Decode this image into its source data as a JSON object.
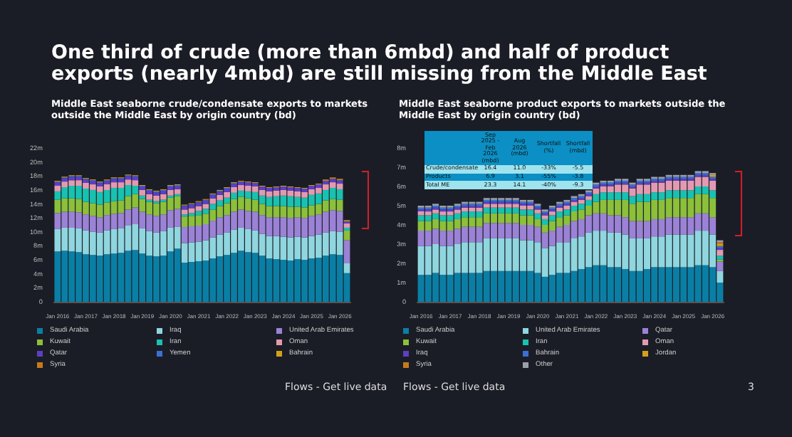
{
  "chart_data": [
    {
      "type": "bar",
      "title": "Middle East seaborne crude/condensate exports to markets outside the Middle East by origin country (bd)",
      "stacked": true,
      "legend": "bottom",
      "annotations": [
        "One third of crude (more than 6mbd) and half of product exports (nearly 4mbd) are still missing from the Middle East",
        "Flows - Get live data"
      ],
      "categories": [
        "Jan 2016",
        null,
        null,
        null,
        "Jan 2017",
        null,
        null,
        null,
        "Jan 2018",
        null,
        null,
        null,
        "Jan 2019",
        null,
        null,
        null,
        "Jan 2020",
        null,
        null,
        null,
        "Jan 2021",
        null,
        null,
        null,
        "Jan 2022",
        null,
        null,
        null,
        "Jan 2023",
        null,
        null,
        null,
        "Jan 2024",
        null,
        null,
        null,
        "Jan 2025",
        null,
        null,
        null,
        "Jan 2026",
        null
      ],
      "ylim": [
        0,
        22
      ],
      "yticks": [
        0,
        {
          "value": 2,
          "label": "2m"
        },
        {
          "value": 4,
          "label": "4m"
        },
        {
          "value": 6,
          "label": "6m"
        },
        {
          "value": 8,
          "label": "8m"
        },
        {
          "value": 10,
          "label": "10m"
        },
        {
          "value": 12,
          "label": "12m"
        },
        {
          "value": 14,
          "label": "14m"
        },
        {
          "value": 16,
          "label": "16m"
        },
        {
          "value": 18,
          "label": "18m"
        },
        {
          "value": 20,
          "label": "20m"
        },
        {
          "value": 22,
          "label": "22m"
        }
      ],
      "series": [
        {
          "name": "Saudi Arabia",
          "color": "#0a7fa5",
          "values": [
            7.2,
            7.3,
            7.2,
            7.1,
            6.8,
            6.7,
            6.6,
            6.8,
            6.9,
            7.0,
            7.3,
            7.4,
            6.9,
            6.6,
            6.5,
            6.6,
            7.2,
            7.6,
            5.6,
            5.7,
            5.8,
            5.9,
            6.2,
            6.5,
            6.7,
            7.0,
            7.3,
            7.1,
            7.0,
            6.6,
            6.2,
            6.1,
            6.0,
            5.9,
            6.1,
            6.0,
            6.2,
            6.3,
            6.6,
            6.8,
            6.7,
            4.1
          ]
        },
        {
          "name": "Iraq",
          "color": "#8fd6df",
          "values": [
            3.2,
            3.3,
            3.4,
            3.4,
            3.4,
            3.3,
            3.3,
            3.4,
            3.5,
            3.5,
            3.6,
            3.7,
            3.6,
            3.5,
            3.4,
            3.5,
            3.4,
            3.1,
            2.8,
            2.8,
            2.8,
            2.9,
            3.0,
            3.1,
            3.2,
            3.3,
            3.3,
            3.3,
            3.2,
            3.1,
            3.2,
            3.3,
            3.3,
            3.3,
            3.2,
            3.2,
            3.2,
            3.3,
            3.3,
            3.3,
            3.3,
            1.4
          ]
        },
        {
          "name": "United Arab Emirates",
          "color": "#9b82d6",
          "values": [
            2.3,
            2.3,
            2.3,
            2.3,
            2.3,
            2.3,
            2.2,
            2.2,
            2.2,
            2.2,
            2.3,
            2.4,
            2.4,
            2.4,
            2.4,
            2.4,
            2.5,
            2.6,
            2.3,
            2.3,
            2.3,
            2.3,
            2.4,
            2.5,
            2.5,
            2.6,
            2.6,
            2.6,
            2.7,
            2.7,
            2.7,
            2.7,
            2.8,
            2.8,
            2.8,
            2.8,
            2.9,
            2.9,
            3.0,
            3.0,
            3.0,
            3.3
          ]
        },
        {
          "name": "Kuwait",
          "color": "#8cbf3a",
          "values": [
            1.9,
            1.9,
            1.9,
            1.9,
            1.8,
            1.8,
            1.8,
            1.8,
            1.8,
            1.8,
            1.9,
            1.9,
            1.8,
            1.8,
            1.8,
            1.8,
            1.8,
            1.8,
            1.5,
            1.5,
            1.5,
            1.5,
            1.6,
            1.6,
            1.7,
            1.8,
            1.8,
            1.8,
            1.7,
            1.6,
            1.6,
            1.6,
            1.6,
            1.6,
            1.5,
            1.5,
            1.5,
            1.5,
            1.6,
            1.6,
            1.6,
            1.4
          ]
        },
        {
          "name": "Iran",
          "color": "#18c1b0",
          "values": [
            1.2,
            1.6,
            1.8,
            1.9,
            1.9,
            1.9,
            1.8,
            1.8,
            1.9,
            1.8,
            1.6,
            1.2,
            0.5,
            0.3,
            0.3,
            0.3,
            0.3,
            0.3,
            0.3,
            0.4,
            0.6,
            0.7,
            0.8,
            0.8,
            0.8,
            0.9,
            0.9,
            1.0,
            1.1,
            1.2,
            1.3,
            1.4,
            1.5,
            1.5,
            1.4,
            1.4,
            1.5,
            1.5,
            1.5,
            1.6,
            1.5,
            0.4
          ]
        },
        {
          "name": "Oman",
          "color": "#e39ab0",
          "values": [
            0.8,
            0.8,
            0.8,
            0.8,
            0.8,
            0.8,
            0.8,
            0.8,
            0.8,
            0.8,
            0.8,
            0.8,
            0.8,
            0.8,
            0.8,
            0.8,
            0.8,
            0.7,
            0.7,
            0.7,
            0.7,
            0.7,
            0.8,
            0.8,
            0.8,
            0.8,
            0.8,
            0.8,
            0.8,
            0.8,
            0.8,
            0.8,
            0.8,
            0.8,
            0.8,
            0.8,
            0.8,
            0.8,
            0.8,
            0.8,
            0.8,
            0.6
          ]
        },
        {
          "name": "Qatar",
          "color": "#5b3fc4",
          "values": [
            0.5,
            0.5,
            0.5,
            0.5,
            0.5,
            0.5,
            0.5,
            0.5,
            0.5,
            0.5,
            0.5,
            0.5,
            0.5,
            0.5,
            0.5,
            0.5,
            0.5,
            0.5,
            0.5,
            0.5,
            0.5,
            0.5,
            0.5,
            0.5,
            0.5,
            0.5,
            0.5,
            0.5,
            0.5,
            0.5,
            0.5,
            0.5,
            0.5,
            0.5,
            0.5,
            0.5,
            0.5,
            0.5,
            0.5,
            0.5,
            0.5,
            0.3
          ]
        },
        {
          "name": "Yemen",
          "color": "#3a6fd6",
          "values": [
            0.1,
            0.1,
            0.1,
            0.1,
            0.1,
            0.1,
            0.1,
            0.1,
            0.1,
            0.1,
            0.1,
            0.1,
            0.1,
            0.1,
            0.1,
            0.1,
            0.1,
            0.1,
            0.1,
            0.1,
            0.1,
            0.1,
            0.1,
            0.1,
            0.1,
            0.1,
            0,
            0,
            0,
            0,
            0,
            0,
            0,
            0,
            0,
            0,
            0,
            0,
            0,
            0,
            0,
            0
          ]
        },
        {
          "name": "Bahrain",
          "color": "#d4a017",
          "values": [
            0.1,
            0.1,
            0.1,
            0.1,
            0.1,
            0.1,
            0.1,
            0.1,
            0.1,
            0.1,
            0.1,
            0.1,
            0.1,
            0.1,
            0.1,
            0.1,
            0.1,
            0.1,
            0.1,
            0.1,
            0.1,
            0.1,
            0.1,
            0.1,
            0.1,
            0.1,
            0.1,
            0.1,
            0.1,
            0.1,
            0.1,
            0.1,
            0.1,
            0.1,
            0.1,
            0.1,
            0.1,
            0.1,
            0.1,
            0.1,
            0.1,
            0.1
          ]
        },
        {
          "name": "Syria",
          "color": "#c47a1a",
          "values": [
            0,
            0,
            0,
            0,
            0,
            0,
            0,
            0,
            0,
            0,
            0,
            0,
            0,
            0,
            0,
            0,
            0,
            0,
            0,
            0,
            0,
            0,
            0,
            0,
            0,
            0,
            0,
            0,
            0,
            0,
            0,
            0,
            0,
            0,
            0,
            0,
            0,
            0,
            0.1,
            0.1,
            0.1,
            0.1
          ]
        }
      ]
    },
    {
      "type": "bar",
      "title": "Middle East seaborne product exports to markets outside the Middle East by origin country (bd)",
      "stacked": true,
      "legend": "bottom",
      "annotations": [
        "Flows - Get live data",
        "3"
      ],
      "categories": [
        "Jan 2016",
        null,
        null,
        null,
        "Jan 2017",
        null,
        null,
        null,
        "Jan 2018",
        null,
        null,
        null,
        "Jan 2019",
        null,
        null,
        null,
        "Jan 2020",
        null,
        null,
        null,
        "Jan 2021",
        null,
        null,
        null,
        "Jan 2022",
        null,
        null,
        null,
        "Jan 2023",
        null,
        null,
        null,
        "Jan 2024",
        null,
        null,
        null,
        "Jan 2025",
        null,
        null,
        null,
        "Jan 2026",
        null
      ],
      "ylim": [
        0,
        8
      ],
      "yticks": [
        0,
        {
          "value": 1,
          "label": "1m"
        },
        {
          "value": 2,
          "label": "2m"
        },
        {
          "value": 3,
          "label": "3m"
        },
        {
          "value": 4,
          "label": "4m"
        },
        {
          "value": 5,
          "label": "5m"
        },
        {
          "value": 6,
          "label": "6m"
        },
        {
          "value": 7,
          "label": "7m"
        },
        {
          "value": 8,
          "label": "8m"
        }
      ],
      "series": [
        {
          "name": "Saudi Arabia",
          "color": "#0a7fa5",
          "values": [
            1.4,
            1.4,
            1.5,
            1.4,
            1.4,
            1.5,
            1.5,
            1.5,
            1.5,
            1.6,
            1.6,
            1.6,
            1.6,
            1.6,
            1.6,
            1.6,
            1.5,
            1.3,
            1.4,
            1.5,
            1.5,
            1.6,
            1.7,
            1.8,
            1.9,
            1.9,
            1.8,
            1.8,
            1.7,
            1.6,
            1.6,
            1.7,
            1.8,
            1.8,
            1.8,
            1.8,
            1.8,
            1.8,
            1.9,
            1.9,
            1.8,
            1.0
          ]
        },
        {
          "name": "United Arab Emirates",
          "color": "#8fd6df",
          "values": [
            1.5,
            1.5,
            1.5,
            1.5,
            1.5,
            1.5,
            1.6,
            1.6,
            1.6,
            1.7,
            1.7,
            1.7,
            1.7,
            1.7,
            1.6,
            1.6,
            1.6,
            1.5,
            1.5,
            1.6,
            1.6,
            1.7,
            1.7,
            1.8,
            1.8,
            1.8,
            1.8,
            1.8,
            1.8,
            1.7,
            1.7,
            1.6,
            1.6,
            1.6,
            1.7,
            1.7,
            1.7,
            1.7,
            1.8,
            1.8,
            1.7,
            0.6
          ]
        },
        {
          "name": "Qatar",
          "color": "#9b82d6",
          "values": [
            0.8,
            0.8,
            0.8,
            0.8,
            0.8,
            0.8,
            0.8,
            0.8,
            0.8,
            0.8,
            0.8,
            0.8,
            0.8,
            0.8,
            0.8,
            0.8,
            0.8,
            0.8,
            0.8,
            0.8,
            0.9,
            0.9,
            0.9,
            0.9,
            0.9,
            0.9,
            0.9,
            0.9,
            0.9,
            0.9,
            0.9,
            0.9,
            0.9,
            0.9,
            0.9,
            0.9,
            0.9,
            0.9,
            0.9,
            0.9,
            0.9,
            0.5
          ]
        },
        {
          "name": "Kuwait",
          "color": "#8cbf3a",
          "values": [
            0.5,
            0.5,
            0.5,
            0.5,
            0.5,
            0.5,
            0.5,
            0.5,
            0.5,
            0.5,
            0.5,
            0.5,
            0.5,
            0.5,
            0.5,
            0.5,
            0.4,
            0.4,
            0.5,
            0.5,
            0.5,
            0.5,
            0.5,
            0.5,
            0.6,
            0.7,
            0.8,
            0.8,
            0.9,
            0.9,
            1.0,
            1.0,
            1.0,
            1.0,
            1.0,
            1.0,
            1.0,
            1.0,
            1.0,
            1.0,
            1.0,
            0.1
          ]
        },
        {
          "name": "Iran",
          "color": "#18c1b0",
          "values": [
            0.3,
            0.3,
            0.3,
            0.3,
            0.3,
            0.3,
            0.3,
            0.3,
            0.3,
            0.3,
            0.3,
            0.3,
            0.3,
            0.3,
            0.3,
            0.3,
            0.3,
            0.3,
            0.3,
            0.3,
            0.3,
            0.3,
            0.3,
            0.3,
            0.4,
            0.4,
            0.4,
            0.4,
            0.4,
            0.4,
            0.4,
            0.4,
            0.4,
            0.4,
            0.4,
            0.4,
            0.4,
            0.4,
            0.4,
            0.4,
            0.4,
            0.2
          ]
        },
        {
          "name": "Oman",
          "color": "#e39ab0",
          "values": [
            0.2,
            0.2,
            0.2,
            0.2,
            0.2,
            0.2,
            0.2,
            0.2,
            0.2,
            0.2,
            0.2,
            0.2,
            0.2,
            0.2,
            0.2,
            0.2,
            0.2,
            0.2,
            0.2,
            0.2,
            0.2,
            0.2,
            0.2,
            0.2,
            0.3,
            0.3,
            0.3,
            0.4,
            0.4,
            0.4,
            0.5,
            0.5,
            0.5,
            0.5,
            0.5,
            0.5,
            0.5,
            0.5,
            0.5,
            0.5,
            0.5,
            0.3
          ]
        },
        {
          "name": "Iraq",
          "color": "#5b3fc4",
          "values": [
            0.1,
            0.1,
            0.1,
            0.1,
            0.1,
            0.1,
            0.1,
            0.1,
            0.1,
            0.1,
            0.1,
            0.1,
            0.1,
            0.1,
            0.1,
            0.1,
            0.1,
            0.1,
            0.1,
            0.1,
            0.1,
            0.1,
            0.1,
            0.1,
            0.1,
            0.1,
            0.1,
            0.1,
            0.1,
            0.1,
            0.1,
            0.1,
            0.1,
            0.1,
            0.1,
            0.1,
            0.1,
            0.1,
            0.1,
            0.1,
            0.1,
            0.1
          ]
        },
        {
          "name": "Bahrain",
          "color": "#3a6fd6",
          "values": [
            0.1,
            0.1,
            0.1,
            0.1,
            0.1,
            0.1,
            0.1,
            0.1,
            0.1,
            0.1,
            0.1,
            0.1,
            0.1,
            0.1,
            0.1,
            0.1,
            0.1,
            0.1,
            0.1,
            0.1,
            0.1,
            0.1,
            0.1,
            0.1,
            0.1,
            0.1,
            0.1,
            0.1,
            0.1,
            0.1,
            0.1,
            0.1,
            0.1,
            0.1,
            0.1,
            0.1,
            0.1,
            0.1,
            0.1,
            0.1,
            0.1,
            0.1
          ]
        },
        {
          "name": "Jordan",
          "color": "#d4a017",
          "values": [
            0,
            0,
            0,
            0,
            0,
            0,
            0,
            0,
            0,
            0,
            0,
            0,
            0,
            0,
            0,
            0,
            0,
            0,
            0,
            0,
            0,
            0,
            0,
            0,
            0,
            0,
            0,
            0,
            0,
            0,
            0,
            0,
            0,
            0,
            0,
            0,
            0,
            0,
            0,
            0,
            0.1,
            0.1
          ]
        },
        {
          "name": "Syria",
          "color": "#c47a1a",
          "values": [
            0,
            0,
            0,
            0,
            0,
            0,
            0,
            0,
            0,
            0,
            0,
            0,
            0,
            0,
            0,
            0,
            0,
            0,
            0,
            0,
            0,
            0,
            0,
            0,
            0,
            0,
            0,
            0,
            0,
            0,
            0,
            0,
            0,
            0,
            0,
            0,
            0,
            0,
            0,
            0,
            0,
            0.1
          ]
        },
        {
          "name": "Other",
          "color": "#9aa0a8",
          "values": [
            0.1,
            0.1,
            0.1,
            0.1,
            0.1,
            0.1,
            0.1,
            0.1,
            0.1,
            0.1,
            0.1,
            0.1,
            0.1,
            0.1,
            0.1,
            0.1,
            0.1,
            0.1,
            0.1,
            0.1,
            0.1,
            0.1,
            0.1,
            0.1,
            0.1,
            0.1,
            0.1,
            0.1,
            0.1,
            0.1,
            0.1,
            0.1,
            0.1,
            0.1,
            0.1,
            0.1,
            0.1,
            0.1,
            0.1,
            0.1,
            0.1,
            0.1
          ]
        }
      ]
    },
    {
      "type": "other",
      "annotations": [
        "Sep 2025 - Feb 2026 (mbd)",
        "Aug 2026 (mbd)",
        "Shortfall (%)",
        "Shortfall (mbd)",
        "Crude/condensate",
        "16.4",
        "11.0",
        "-33%",
        "-5.5",
        "Products",
        "6.9",
        "3.1",
        "-55%",
        "-3.8",
        "Total ME",
        "23.3",
        "14.1",
        "-40%",
        "-9.3"
      ]
    }
  ]
}
